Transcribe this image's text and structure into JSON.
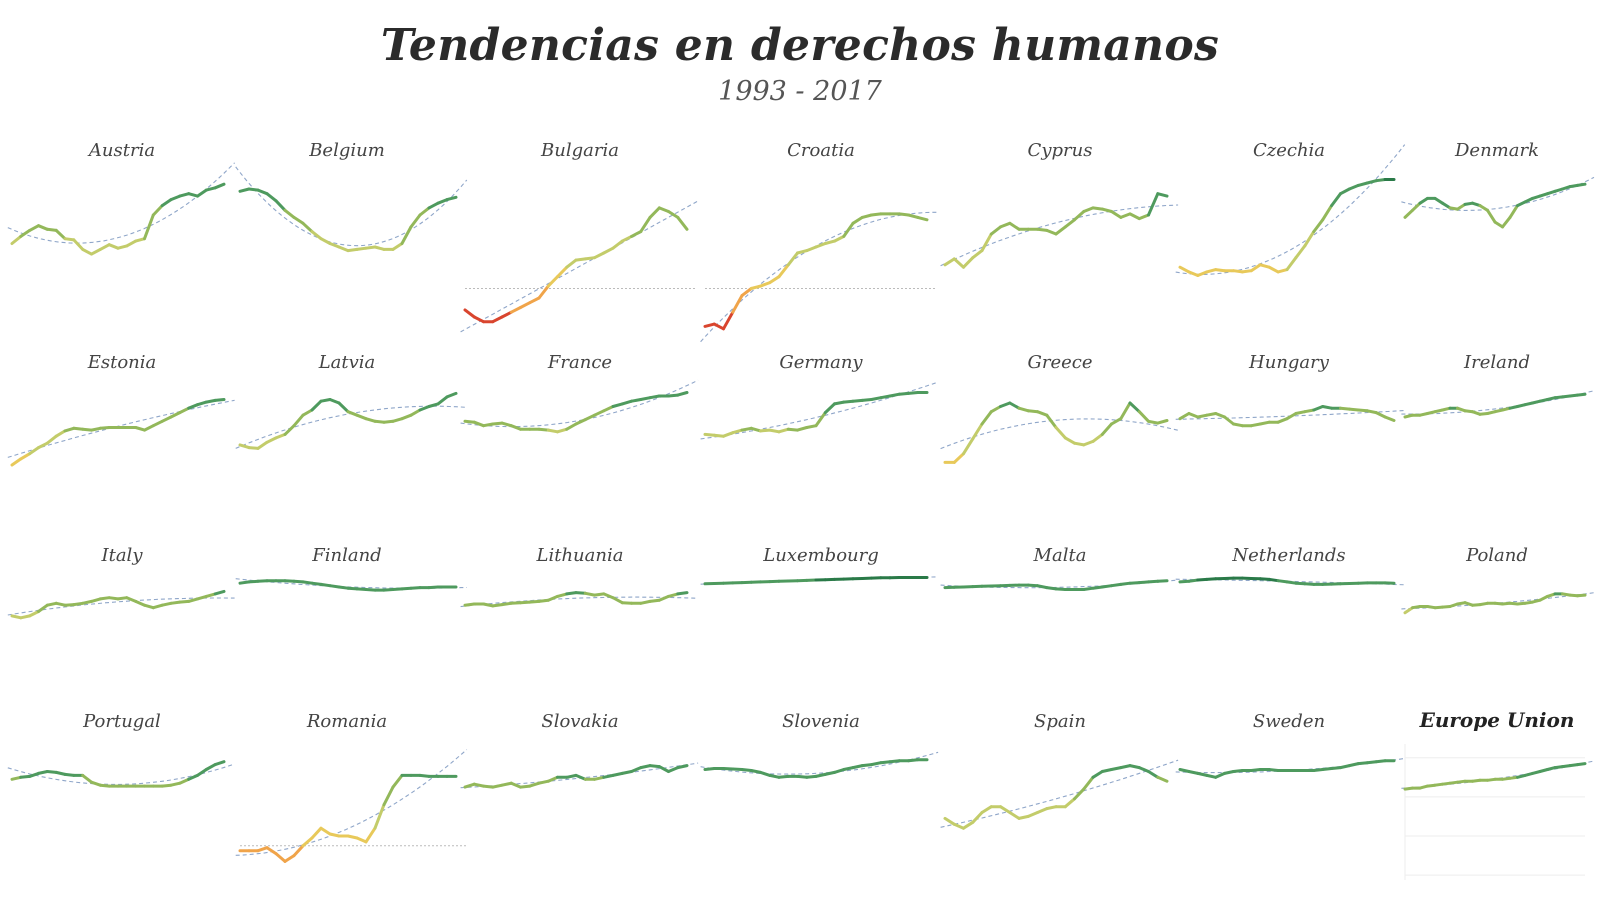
{
  "title": "Tendencias en derechos humanos",
  "subtitle": "1993 - 2017",
  "chart_data": {
    "type": "line",
    "x_start": 1993,
    "x_end": 2017,
    "trend_color": "#8fa6c9",
    "zero_line_color": "#bbbbbb",
    "palette": {
      "low": "#d9452e",
      "mid_low": "#f0a44a",
      "mid": "#e8c95a",
      "mid_high": "#c3cc6a",
      "high": "#93b85a",
      "top": "#4e9a5e",
      "max": "#2a7a48"
    },
    "series": [
      {
        "name": "Austria",
        "values": [
          0.38,
          0.44,
          0.49,
          0.53,
          0.5,
          0.49,
          0.42,
          0.41,
          0.33,
          0.29,
          0.33,
          0.37,
          0.34,
          0.36,
          0.4,
          0.42,
          0.62,
          0.7,
          0.75,
          0.78,
          0.8,
          0.78,
          0.83,
          0.85,
          0.88
        ]
      },
      {
        "name": "Belgium",
        "values": [
          0.82,
          0.84,
          0.83,
          0.8,
          0.74,
          0.66,
          0.6,
          0.55,
          0.48,
          0.42,
          0.38,
          0.35,
          0.32,
          0.33,
          0.34,
          0.35,
          0.33,
          0.33,
          0.38,
          0.52,
          0.62,
          0.68,
          0.72,
          0.75,
          0.77
        ]
      },
      {
        "name": "Bulgaria",
        "values": [
          -0.18,
          -0.24,
          -0.28,
          -0.28,
          -0.24,
          -0.2,
          -0.16,
          -0.12,
          -0.08,
          0.02,
          0.1,
          0.18,
          0.24,
          0.25,
          0.26,
          0.3,
          0.34,
          0.4,
          0.44,
          0.48,
          0.6,
          0.68,
          0.65,
          0.6,
          0.5
        ]
      },
      {
        "name": "Croatia",
        "values": [
          -0.32,
          -0.3,
          -0.34,
          -0.2,
          -0.06,
          0.0,
          0.02,
          0.05,
          0.1,
          0.2,
          0.3,
          0.32,
          0.35,
          0.38,
          0.4,
          0.44,
          0.55,
          0.6,
          0.62,
          0.63,
          0.63,
          0.63,
          0.62,
          0.6,
          0.58
        ]
      },
      {
        "name": "Cyprus",
        "values": [
          0.2,
          0.25,
          0.18,
          0.26,
          0.32,
          0.46,
          0.52,
          0.55,
          0.5,
          0.5,
          0.5,
          0.49,
          0.46,
          0.52,
          0.58,
          0.65,
          0.68,
          0.67,
          0.65,
          0.6,
          0.63,
          0.59,
          0.62,
          0.8,
          0.78
        ]
      },
      {
        "name": "Czechia",
        "values": [
          0.18,
          0.14,
          0.11,
          0.14,
          0.16,
          0.15,
          0.15,
          0.14,
          0.15,
          0.2,
          0.18,
          0.14,
          0.16,
          0.26,
          0.36,
          0.48,
          0.58,
          0.7,
          0.8,
          0.84,
          0.87,
          0.89,
          0.91,
          0.92,
          0.92
        ]
      },
      {
        "name": "Denmark",
        "values": [
          0.6,
          0.66,
          0.72,
          0.76,
          0.76,
          0.72,
          0.68,
          0.67,
          0.71,
          0.72,
          0.7,
          0.66,
          0.56,
          0.52,
          0.6,
          0.7,
          0.73,
          0.76,
          0.78,
          0.8,
          0.82,
          0.84,
          0.86,
          0.87,
          0.88
        ]
      },
      {
        "name": "Estonia",
        "values": [
          0.05,
          0.12,
          0.18,
          0.25,
          0.3,
          0.38,
          0.44,
          0.47,
          0.46,
          0.45,
          0.47,
          0.48,
          0.48,
          0.48,
          0.48,
          0.45,
          0.5,
          0.55,
          0.6,
          0.65,
          0.7,
          0.74,
          0.77,
          0.79,
          0.8
        ]
      },
      {
        "name": "Latvia",
        "values": [
          0.28,
          0.25,
          0.24,
          0.31,
          0.36,
          0.4,
          0.5,
          0.62,
          0.68,
          0.78,
          0.8,
          0.76,
          0.66,
          0.62,
          0.58,
          0.55,
          0.54,
          0.55,
          0.58,
          0.62,
          0.68,
          0.72,
          0.75,
          0.83,
          0.87
        ]
      },
      {
        "name": "France",
        "values": [
          0.55,
          0.54,
          0.5,
          0.52,
          0.53,
          0.5,
          0.46,
          0.46,
          0.46,
          0.45,
          0.43,
          0.46,
          0.52,
          0.57,
          0.62,
          0.67,
          0.72,
          0.75,
          0.78,
          0.8,
          0.82,
          0.84,
          0.84,
          0.85,
          0.88
        ]
      },
      {
        "name": "Germany",
        "values": [
          0.4,
          0.39,
          0.38,
          0.42,
          0.45,
          0.47,
          0.44,
          0.45,
          0.43,
          0.46,
          0.45,
          0.48,
          0.5,
          0.65,
          0.75,
          0.77,
          0.78,
          0.79,
          0.8,
          0.82,
          0.84,
          0.86,
          0.87,
          0.88,
          0.88
        ]
      },
      {
        "name": "Greece",
        "values": [
          0.08,
          0.08,
          0.18,
          0.35,
          0.52,
          0.66,
          0.72,
          0.76,
          0.7,
          0.67,
          0.66,
          0.62,
          0.48,
          0.36,
          0.3,
          0.28,
          0.32,
          0.4,
          0.52,
          0.58,
          0.76,
          0.66,
          0.55,
          0.53,
          0.56
        ]
      },
      {
        "name": "Hungary",
        "values": [
          0.58,
          0.64,
          0.6,
          0.62,
          0.64,
          0.6,
          0.52,
          0.5,
          0.5,
          0.52,
          0.54,
          0.54,
          0.58,
          0.64,
          0.66,
          0.68,
          0.72,
          0.7,
          0.7,
          0.69,
          0.68,
          0.67,
          0.65,
          0.6,
          0.56
        ]
      },
      {
        "name": "Ireland",
        "values": [
          0.6,
          0.62,
          0.62,
          0.64,
          0.66,
          0.68,
          0.7,
          0.7,
          0.67,
          0.66,
          0.63,
          0.64,
          0.66,
          0.68,
          0.7,
          0.72,
          0.74,
          0.76,
          0.78,
          0.8,
          0.82,
          0.83,
          0.84,
          0.85,
          0.86
        ]
      },
      {
        "name": "Italy",
        "values": [
          0.35,
          0.32,
          0.35,
          0.42,
          0.52,
          0.55,
          0.52,
          0.53,
          0.55,
          0.58,
          0.62,
          0.64,
          0.62,
          0.64,
          0.58,
          0.52,
          0.48,
          0.52,
          0.55,
          0.57,
          0.58,
          0.62,
          0.66,
          0.7,
          0.74
        ]
      },
      {
        "name": "Finland",
        "values": [
          0.87,
          0.89,
          0.9,
          0.91,
          0.91,
          0.91,
          0.9,
          0.89,
          0.87,
          0.85,
          0.83,
          0.81,
          0.79,
          0.78,
          0.77,
          0.76,
          0.76,
          0.77,
          0.78,
          0.79,
          0.8,
          0.8,
          0.81,
          0.81,
          0.81
        ]
      },
      {
        "name": "Lithuania",
        "values": [
          0.52,
          0.54,
          0.54,
          0.51,
          0.53,
          0.55,
          0.56,
          0.57,
          0.58,
          0.6,
          0.66,
          0.7,
          0.72,
          0.71,
          0.68,
          0.7,
          0.64,
          0.56,
          0.55,
          0.55,
          0.58,
          0.6,
          0.66,
          0.7,
          0.72
        ]
      },
      {
        "name": "Luxembourg",
        "values": [
          0.86,
          0.865,
          0.87,
          0.875,
          0.88,
          0.885,
          0.89,
          0.895,
          0.9,
          0.905,
          0.91,
          0.915,
          0.92,
          0.925,
          0.93,
          0.935,
          0.94,
          0.945,
          0.95,
          0.955,
          0.955,
          0.96,
          0.96,
          0.96,
          0.96
        ]
      },
      {
        "name": "Malta",
        "values": [
          0.8,
          0.805,
          0.81,
          0.815,
          0.82,
          0.825,
          0.83,
          0.835,
          0.84,
          0.84,
          0.83,
          0.8,
          0.78,
          0.77,
          0.77,
          0.77,
          0.79,
          0.81,
          0.83,
          0.85,
          0.87,
          0.88,
          0.89,
          0.9,
          0.91
        ]
      },
      {
        "name": "Netherlands",
        "values": [
          0.89,
          0.9,
          0.92,
          0.93,
          0.94,
          0.945,
          0.95,
          0.95,
          0.945,
          0.94,
          0.93,
          0.91,
          0.89,
          0.87,
          0.86,
          0.85,
          0.85,
          0.855,
          0.86,
          0.865,
          0.87,
          0.875,
          0.875,
          0.875,
          0.87
        ]
      },
      {
        "name": "Poland",
        "values": [
          0.4,
          0.48,
          0.5,
          0.5,
          0.48,
          0.49,
          0.5,
          0.54,
          0.56,
          0.52,
          0.53,
          0.55,
          0.55,
          0.54,
          0.55,
          0.54,
          0.55,
          0.57,
          0.6,
          0.66,
          0.7,
          0.7,
          0.68,
          0.67,
          0.68
        ]
      },
      {
        "name": "Portugal",
        "values": [
          0.68,
          0.7,
          0.71,
          0.74,
          0.76,
          0.75,
          0.73,
          0.72,
          0.72,
          0.65,
          0.62,
          0.61,
          0.61,
          0.61,
          0.61,
          0.61,
          0.61,
          0.61,
          0.62,
          0.64,
          0.68,
          0.72,
          0.78,
          0.83,
          0.86
        ]
      },
      {
        "name": "Romania",
        "values": [
          -0.05,
          -0.05,
          -0.05,
          -0.02,
          -0.08,
          -0.16,
          -0.1,
          0.0,
          0.08,
          0.18,
          0.12,
          0.1,
          0.1,
          0.08,
          0.04,
          0.18,
          0.42,
          0.6,
          0.72,
          0.72,
          0.72,
          0.71,
          0.71,
          0.71,
          0.71
        ]
      },
      {
        "name": "Slovakia",
        "values": [
          0.6,
          0.63,
          0.61,
          0.6,
          0.62,
          0.64,
          0.6,
          0.61,
          0.64,
          0.66,
          0.7,
          0.7,
          0.72,
          0.68,
          0.68,
          0.7,
          0.72,
          0.74,
          0.76,
          0.8,
          0.82,
          0.81,
          0.76,
          0.8,
          0.82
        ]
      },
      {
        "name": "Slovenia",
        "values": [
          0.78,
          0.79,
          0.79,
          0.785,
          0.78,
          0.77,
          0.75,
          0.72,
          0.7,
          0.71,
          0.71,
          0.7,
          0.71,
          0.73,
          0.75,
          0.78,
          0.8,
          0.82,
          0.83,
          0.85,
          0.86,
          0.87,
          0.87,
          0.88,
          0.88
        ]
      },
      {
        "name": "Spain",
        "values": [
          0.28,
          0.22,
          0.18,
          0.24,
          0.34,
          0.4,
          0.4,
          0.34,
          0.28,
          0.3,
          0.34,
          0.38,
          0.4,
          0.4,
          0.48,
          0.58,
          0.7,
          0.76,
          0.78,
          0.8,
          0.82,
          0.8,
          0.76,
          0.7,
          0.66
        ]
      },
      {
        "name": "Sweden",
        "values": [
          0.78,
          0.76,
          0.74,
          0.72,
          0.7,
          0.74,
          0.76,
          0.77,
          0.77,
          0.78,
          0.78,
          0.77,
          0.77,
          0.77,
          0.77,
          0.77,
          0.78,
          0.79,
          0.8,
          0.82,
          0.84,
          0.85,
          0.86,
          0.87,
          0.87
        ]
      },
      {
        "name": "Europe Union",
        "values": [
          0.58,
          0.59,
          0.59,
          0.61,
          0.62,
          0.63,
          0.64,
          0.65,
          0.66,
          0.66,
          0.67,
          0.67,
          0.68,
          0.68,
          0.69,
          0.7,
          0.72,
          0.74,
          0.76,
          0.78,
          0.8,
          0.81,
          0.82,
          0.83,
          0.84
        ],
        "highlight": true
      }
    ]
  }
}
